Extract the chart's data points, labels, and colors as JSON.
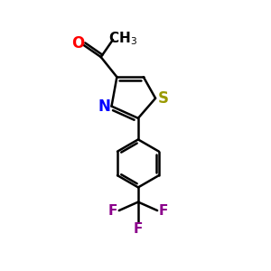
{
  "background_color": "#ffffff",
  "bond_color": "#000000",
  "atom_colors": {
    "O": "#ff0000",
    "N": "#0000ff",
    "S": "#999900",
    "F": "#8b008b",
    "C": "#000000"
  },
  "font_size_label": 12,
  "line_width": 1.8
}
